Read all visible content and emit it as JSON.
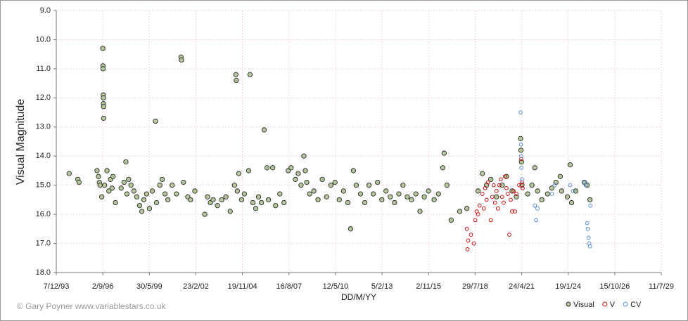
{
  "chart_data": {
    "type": "scatter",
    "x_label": "DD/M/YY",
    "y_label": "Visual Magnitude",
    "credit": "© Gary Poyner www.variablestars.co.uk",
    "xlim": [
      "1993-12-07",
      "2029-07-11"
    ],
    "xticks": [
      {
        "value": "1993-12-07",
        "label": "7/12/93"
      },
      {
        "value": "1996-09-02",
        "label": "2/9/96"
      },
      {
        "value": "1999-05-30",
        "label": "30/5/99"
      },
      {
        "value": "2002-02-23",
        "label": "23/2/02"
      },
      {
        "value": "2004-11-19",
        "label": "19/11/04"
      },
      {
        "value": "2007-08-16",
        "label": "16/8/07"
      },
      {
        "value": "2010-05-12",
        "label": "12/5/10"
      },
      {
        "value": "2013-02-05",
        "label": "5/2/13"
      },
      {
        "value": "2015-11-02",
        "label": "2/11/15"
      },
      {
        "value": "2018-07-29",
        "label": "29/7/18"
      },
      {
        "value": "2021-04-24",
        "label": "24/4/21"
      },
      {
        "value": "2024-01-19",
        "label": "19/1/24"
      },
      {
        "value": "2026-10-15",
        "label": "15/10/26"
      },
      {
        "value": "2029-07-11",
        "label": "11/7/29"
      }
    ],
    "ylim": [
      9,
      18
    ],
    "y_inverted": true,
    "yticks": [
      {
        "value": 9,
        "label": "9.0"
      },
      {
        "value": 10,
        "label": "10.0"
      },
      {
        "value": 11,
        "label": "11.0"
      },
      {
        "value": 12,
        "label": "12.0"
      },
      {
        "value": 13,
        "label": "13.0"
      },
      {
        "value": 14,
        "label": "14.0"
      },
      {
        "value": 15,
        "label": "15.0"
      },
      {
        "value": 16,
        "label": "16.0"
      },
      {
        "value": 17,
        "label": "17.0"
      },
      {
        "value": 18,
        "label": "18.0"
      }
    ],
    "grid": true,
    "legend": "bottom-right",
    "series": [
      {
        "name": "Visual",
        "color": "#b4c79a",
        "stroke": "#2a2a2a",
        "filled": true,
        "x": [
          "1994-09-10",
          "1995-03-15",
          "1995-04-10",
          "1996-05-01",
          "1996-06-01",
          "1996-06-20",
          "1996-07-05",
          "1996-08-10",
          "1996-09-01",
          "1996-09-05",
          "1996-09-08",
          "1996-09-12",
          "1996-09-14",
          "1996-09-16",
          "1996-09-18",
          "1996-09-20",
          "1996-10-10",
          "1996-12-01",
          "1997-01-10",
          "1997-02-15",
          "1997-03-20",
          "1997-04-10",
          "1997-06-01",
          "1997-10-01",
          "1997-12-01",
          "1998-01-10",
          "1998-02-01",
          "1998-03-10",
          "1998-05-01",
          "1998-07-01",
          "1998-09-01",
          "1998-11-01",
          "1998-12-20",
          "1999-02-01",
          "1999-04-01",
          "1999-06-01",
          "1999-08-01",
          "1999-10-10",
          "1999-11-01",
          "2000-01-10",
          "2000-03-01",
          "2000-05-01",
          "2000-07-01",
          "2000-10-01",
          "2001-01-01",
          "2001-04-10",
          "2001-04-20",
          "2001-06-01",
          "2001-09-01",
          "2001-11-01",
          "2002-02-01",
          "2002-09-01",
          "2002-11-01",
          "2003-01-01",
          "2003-03-01",
          "2003-06-01",
          "2003-09-01",
          "2003-12-01",
          "2004-03-01",
          "2004-06-01",
          "2004-07-01",
          "2004-07-10",
          "2004-08-01",
          "2004-09-01",
          "2004-11-01",
          "2005-01-01",
          "2005-04-01",
          "2005-05-01",
          "2005-07-01",
          "2005-09-01",
          "2005-11-01",
          "2006-01-01",
          "2006-03-01",
          "2006-05-01",
          "2006-06-01",
          "2006-09-01",
          "2006-11-01",
          "2007-02-01",
          "2007-05-01",
          "2007-08-01",
          "2007-10-01",
          "2008-01-01",
          "2008-03-01",
          "2008-05-01",
          "2008-07-01",
          "2008-08-01",
          "2008-09-01",
          "2008-11-01",
          "2009-02-01",
          "2009-05-01",
          "2009-08-01",
          "2009-11-01",
          "2010-02-01",
          "2010-05-01",
          "2010-08-01",
          "2010-11-01",
          "2011-02-01",
          "2011-04-01",
          "2011-06-01",
          "2011-08-01",
          "2011-11-01",
          "2012-02-01",
          "2012-05-01",
          "2012-08-01",
          "2012-11-01",
          "2013-02-01",
          "2013-05-01",
          "2013-08-01",
          "2013-11-01",
          "2014-02-01",
          "2014-05-01",
          "2014-08-01",
          "2014-11-01",
          "2015-02-01",
          "2015-05-01",
          "2015-08-01",
          "2015-11-01",
          "2016-03-01",
          "2016-06-01",
          "2016-09-01",
          "2016-10-01",
          "2016-12-01",
          "2017-03-01",
          "2017-09-01",
          "2018-02-01",
          "2018-10-01",
          "2019-01-01",
          "2019-04-01",
          "2019-07-01",
          "2019-11-01",
          "2020-03-01",
          "2020-06-01",
          "2020-10-01",
          "2021-01-01",
          "2021-04-01",
          "2021-04-10",
          "2021-04-20",
          "2021-05-01",
          "2021-09-01",
          "2021-12-01",
          "2022-02-01",
          "2022-04-01",
          "2022-07-01",
          "2022-11-01",
          "2023-02-01",
          "2023-05-01",
          "2023-08-01",
          "2023-09-01",
          "2024-01-01",
          "2024-03-01",
          "2024-04-01",
          "2024-07-01",
          "2025-01-01",
          "2025-03-01",
          "2025-05-01"
        ],
        "values": [
          14.6,
          14.8,
          14.9,
          14.5,
          14.7,
          14.9,
          15.0,
          15.4,
          10.3,
          10.9,
          11.0,
          11.9,
          12.0,
          12.2,
          12.3,
          12.7,
          15.0,
          14.5,
          15.2,
          14.8,
          15.1,
          14.7,
          15.6,
          15.1,
          14.9,
          14.2,
          15.3,
          14.8,
          15.0,
          15.2,
          15.4,
          15.7,
          15.9,
          15.5,
          15.3,
          15.8,
          15.2,
          12.8,
          15.6,
          15.0,
          14.8,
          15.3,
          15.5,
          15.0,
          15.3,
          10.6,
          10.7,
          14.9,
          15.4,
          15.5,
          15.2,
          16.0,
          15.4,
          15.6,
          15.5,
          15.7,
          15.5,
          15.4,
          15.9,
          15.0,
          11.2,
          11.4,
          15.2,
          14.6,
          15.5,
          15.3,
          14.5,
          11.2,
          15.6,
          15.8,
          15.4,
          15.6,
          13.1,
          14.4,
          15.5,
          14.4,
          15.7,
          15.3,
          15.6,
          14.5,
          14.4,
          14.8,
          14.6,
          15.0,
          14.0,
          14.5,
          14.9,
          15.3,
          15.2,
          15.5,
          14.8,
          15.4,
          15.0,
          14.9,
          15.5,
          15.2,
          15.6,
          16.5,
          14.5,
          15.0,
          15.3,
          15.6,
          15.0,
          15.3,
          14.9,
          15.5,
          15.2,
          15.4,
          15.6,
          15.3,
          15.0,
          15.4,
          15.5,
          15.3,
          15.9,
          15.4,
          15.2,
          15.5,
          15.3,
          14.4,
          13.9,
          15.0,
          16.2,
          15.9,
          15.8,
          15.2,
          14.6,
          15.0,
          14.8,
          15.4,
          15.0,
          14.7,
          15.2,
          15.4,
          13.4,
          13.8,
          14.2,
          15.0,
          15.3,
          15.0,
          14.4,
          15.2,
          15.5,
          15.3,
          15.1,
          14.9,
          14.7,
          15.2,
          15.4,
          14.3,
          15.6,
          15.2,
          14.9,
          15.0,
          15.5
        ]
      },
      {
        "name": "V",
        "color": "#cc1111",
        "stroke": "#cc1111",
        "filled": false,
        "x": [
          "2018-02-01",
          "2018-02-15",
          "2018-03-01",
          "2018-05-01",
          "2018-07-01",
          "2018-08-01",
          "2018-09-01",
          "2018-10-01",
          "2018-11-01",
          "2019-01-01",
          "2019-02-01",
          "2019-03-01",
          "2019-04-01",
          "2019-05-01",
          "2019-07-01",
          "2019-08-01",
          "2019-09-01",
          "2019-10-01",
          "2019-11-01",
          "2019-12-01",
          "2020-01-01",
          "2020-02-01",
          "2020-03-01",
          "2020-04-01",
          "2020-05-01",
          "2020-06-01",
          "2020-07-01",
          "2020-08-01",
          "2020-09-01",
          "2020-10-01",
          "2020-11-01",
          "2020-12-01",
          "2021-01-01",
          "2021-03-01",
          "2021-04-15",
          "2021-05-01",
          "2021-05-15"
        ],
        "values": [
          16.5,
          17.2,
          16.9,
          16.7,
          17.0,
          16.2,
          15.9,
          16.0,
          15.7,
          15.3,
          15.8,
          15.1,
          15.5,
          14.9,
          16.2,
          15.4,
          15.0,
          15.6,
          15.2,
          15.8,
          15.0,
          14.8,
          15.4,
          15.6,
          14.7,
          15.1,
          15.3,
          16.7,
          15.5,
          15.9,
          15.2,
          15.9,
          15.3,
          15.0,
          14.1,
          14.9,
          15.1
        ]
      },
      {
        "name": "CV",
        "color": "#5b8fd6",
        "stroke": "#5b8fd6",
        "filled": false,
        "x": [
          "2021-04-01",
          "2021-04-10",
          "2021-04-15",
          "2021-04-20",
          "2021-05-01",
          "2022-02-01",
          "2022-03-01",
          "2022-04-01",
          "2023-02-01",
          "2023-04-01",
          "2024-03-01",
          "2024-05-01",
          "2025-01-01",
          "2025-02-01",
          "2025-03-01",
          "2025-03-15",
          "2025-04-01",
          "2025-04-15",
          "2025-05-01",
          "2025-05-10"
        ],
        "values": [
          12.5,
          13.6,
          14.0,
          14.4,
          14.8,
          15.7,
          16.2,
          15.8,
          15.3,
          15.0,
          15.0,
          15.2,
          14.9,
          15.0,
          16.3,
          16.5,
          16.8,
          17.0,
          17.1,
          15.7
        ]
      }
    ]
  }
}
